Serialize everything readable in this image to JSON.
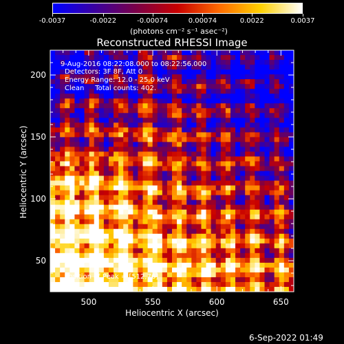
{
  "chart_data": {
    "type": "heatmap",
    "title": "Reconstructed RHESSI Image",
    "xlabel": "Heliocentric X (arcsec)",
    "ylabel": "Heliocentric Y (arcsec)",
    "xlim": [
      470,
      660
    ],
    "ylim": [
      25,
      220
    ],
    "x_ticks": [
      "500",
      "550",
      "600",
      "650"
    ],
    "y_ticks": [
      "50",
      "100",
      "150",
      "200"
    ],
    "x_tick_values": [
      500,
      550,
      600,
      650
    ],
    "y_tick_values": [
      50,
      100,
      150,
      200
    ],
    "colorbar": {
      "ticks": [
        "-0.0037",
        "-0.0022",
        "-0.00074",
        "0.00074",
        "0.0022",
        "0.0037"
      ],
      "tick_values": [
        -0.0037,
        -0.0022,
        -0.00074,
        0.00074,
        0.0022,
        0.0037
      ],
      "range": [
        -0.0037,
        0.0037
      ],
      "units_label": "(photons cm⁻² s⁻¹ asec⁻²)",
      "colors": [
        "#0000ff",
        "#3a00a0",
        "#7a0048",
        "#c80000",
        "#ff6a00",
        "#ffd000",
        "#ffffff"
      ]
    },
    "peak": [
      512,
      76
    ],
    "grid": false
  },
  "annotations": {
    "time_range": "9-Aug-2016 08:22:08.000 to 08:22:56.000",
    "detectors": "Detectors: 3F 8F, Att 0",
    "energy": "Energy Range: 12.0 - 25.0 keV",
    "clean": "Clean     Total counts: 402.",
    "peak_text": "Position of Peak = [512,76]"
  },
  "footer": {
    "timestamp": "6-Sep-2022 01:49"
  }
}
